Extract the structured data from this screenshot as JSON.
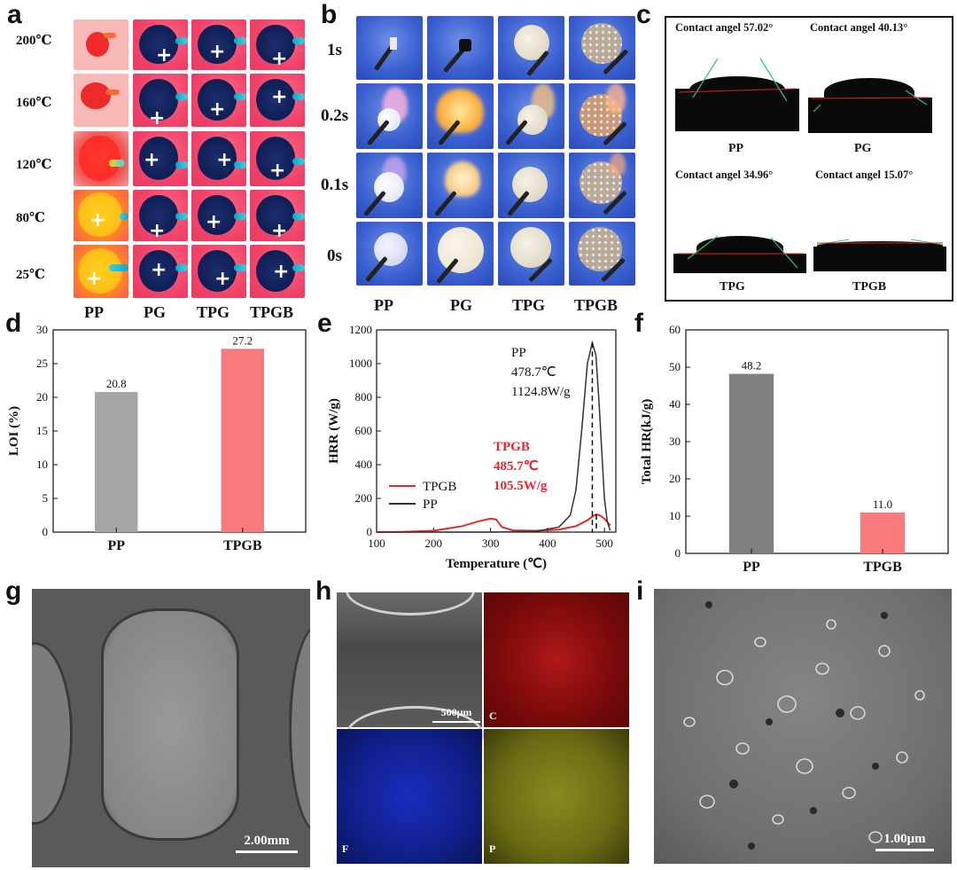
{
  "panels": {
    "a": {
      "label": "a",
      "temperatures": [
        "200℃",
        "160℃",
        "120℃",
        "80℃",
        "25℃"
      ],
      "samples": [
        "PP",
        "PG",
        "TPG",
        "TPGB"
      ]
    },
    "b": {
      "label": "b",
      "times": [
        "1s",
        "0.2s",
        "0.1s",
        "0s"
      ],
      "samples": [
        "PP",
        "PG",
        "TPG",
        "TPGB"
      ]
    },
    "c": {
      "label": "c",
      "items": [
        {
          "angle_text": "Contact angel 57.02°",
          "sample": "PP",
          "angle": 57.02
        },
        {
          "angle_text": "Contact angel 40.13°",
          "sample": "PG",
          "angle": 40.13
        },
        {
          "angle_text": "Contact angel 34.96°",
          "sample": "TPG",
          "angle": 34.96
        },
        {
          "angle_text": "Contact angel 15.07°",
          "sample": "TPGB",
          "angle": 15.07
        }
      ]
    },
    "g": {
      "label": "g",
      "scale": "2.00mm"
    },
    "h": {
      "label": "h",
      "scale": "500μm",
      "elements": [
        "C",
        "F",
        "P"
      ]
    },
    "i": {
      "label": "i",
      "scale": "1.00μm"
    }
  },
  "chart_data": [
    {
      "id": "d",
      "label": "d",
      "type": "bar",
      "categories": [
        "PP",
        "TPGB"
      ],
      "values": [
        20.8,
        27.2
      ],
      "value_labels": [
        "20.8",
        "27.2"
      ],
      "ylabel": "LOI (%)",
      "ylim": [
        0,
        30
      ],
      "yticks": [
        "0",
        "5",
        "10",
        "15",
        "20",
        "25",
        "30"
      ],
      "colors": [
        "#a6a6a6",
        "#f97a7a"
      ]
    },
    {
      "id": "e",
      "label": "e",
      "type": "line",
      "xlabel": "Temperature (℃)",
      "ylabel": "HRR (W/g)",
      "xlim": [
        100,
        520
      ],
      "ylim": [
        0,
        1200
      ],
      "xticks": [
        "100",
        "200",
        "300",
        "400",
        "500"
      ],
      "yticks": [
        "0",
        "200",
        "400",
        "600",
        "800",
        "1000",
        "1200"
      ],
      "series": [
        {
          "name": "TPGB",
          "color": "#e8272a",
          "x": [
            100,
            150,
            200,
            250,
            280,
            300,
            310,
            320,
            340,
            380,
            420,
            450,
            470,
            480,
            485.7,
            492,
            500,
            505,
            510
          ],
          "y": [
            0,
            2,
            8,
            35,
            65,
            80,
            75,
            30,
            10,
            8,
            15,
            35,
            70,
            95,
            105.5,
            100,
            80,
            60,
            40
          ]
        },
        {
          "name": "PP",
          "color": "#333333",
          "x": [
            100,
            200,
            300,
            380,
            420,
            440,
            450,
            460,
            470,
            478.7,
            485,
            490,
            495,
            500,
            505,
            510
          ],
          "y": [
            0,
            0,
            0,
            5,
            30,
            100,
            250,
            600,
            1000,
            1124.8,
            1050,
            800,
            500,
            200,
            60,
            10
          ]
        }
      ],
      "annotations": [
        {
          "lines": [
            "PP",
            "478.7℃",
            "1124.8W/g"
          ],
          "color": "#111111"
        },
        {
          "lines": [
            "TPGB",
            "485.7℃",
            "105.5W/g"
          ],
          "color": "#e8272a"
        }
      ],
      "peak_markers": [
        478.7,
        485.7
      ]
    },
    {
      "id": "f",
      "label": "f",
      "type": "bar",
      "categories": [
        "PP",
        "TPGB"
      ],
      "values": [
        48.2,
        11.0
      ],
      "value_labels": [
        "48.2",
        "11.0"
      ],
      "ylabel": "Total HR(kJ/g)",
      "ylim": [
        0,
        60
      ],
      "yticks": [
        "0",
        "10",
        "20",
        "30",
        "40",
        "50",
        "60"
      ],
      "colors": [
        "#808080",
        "#f97a7a"
      ]
    }
  ]
}
